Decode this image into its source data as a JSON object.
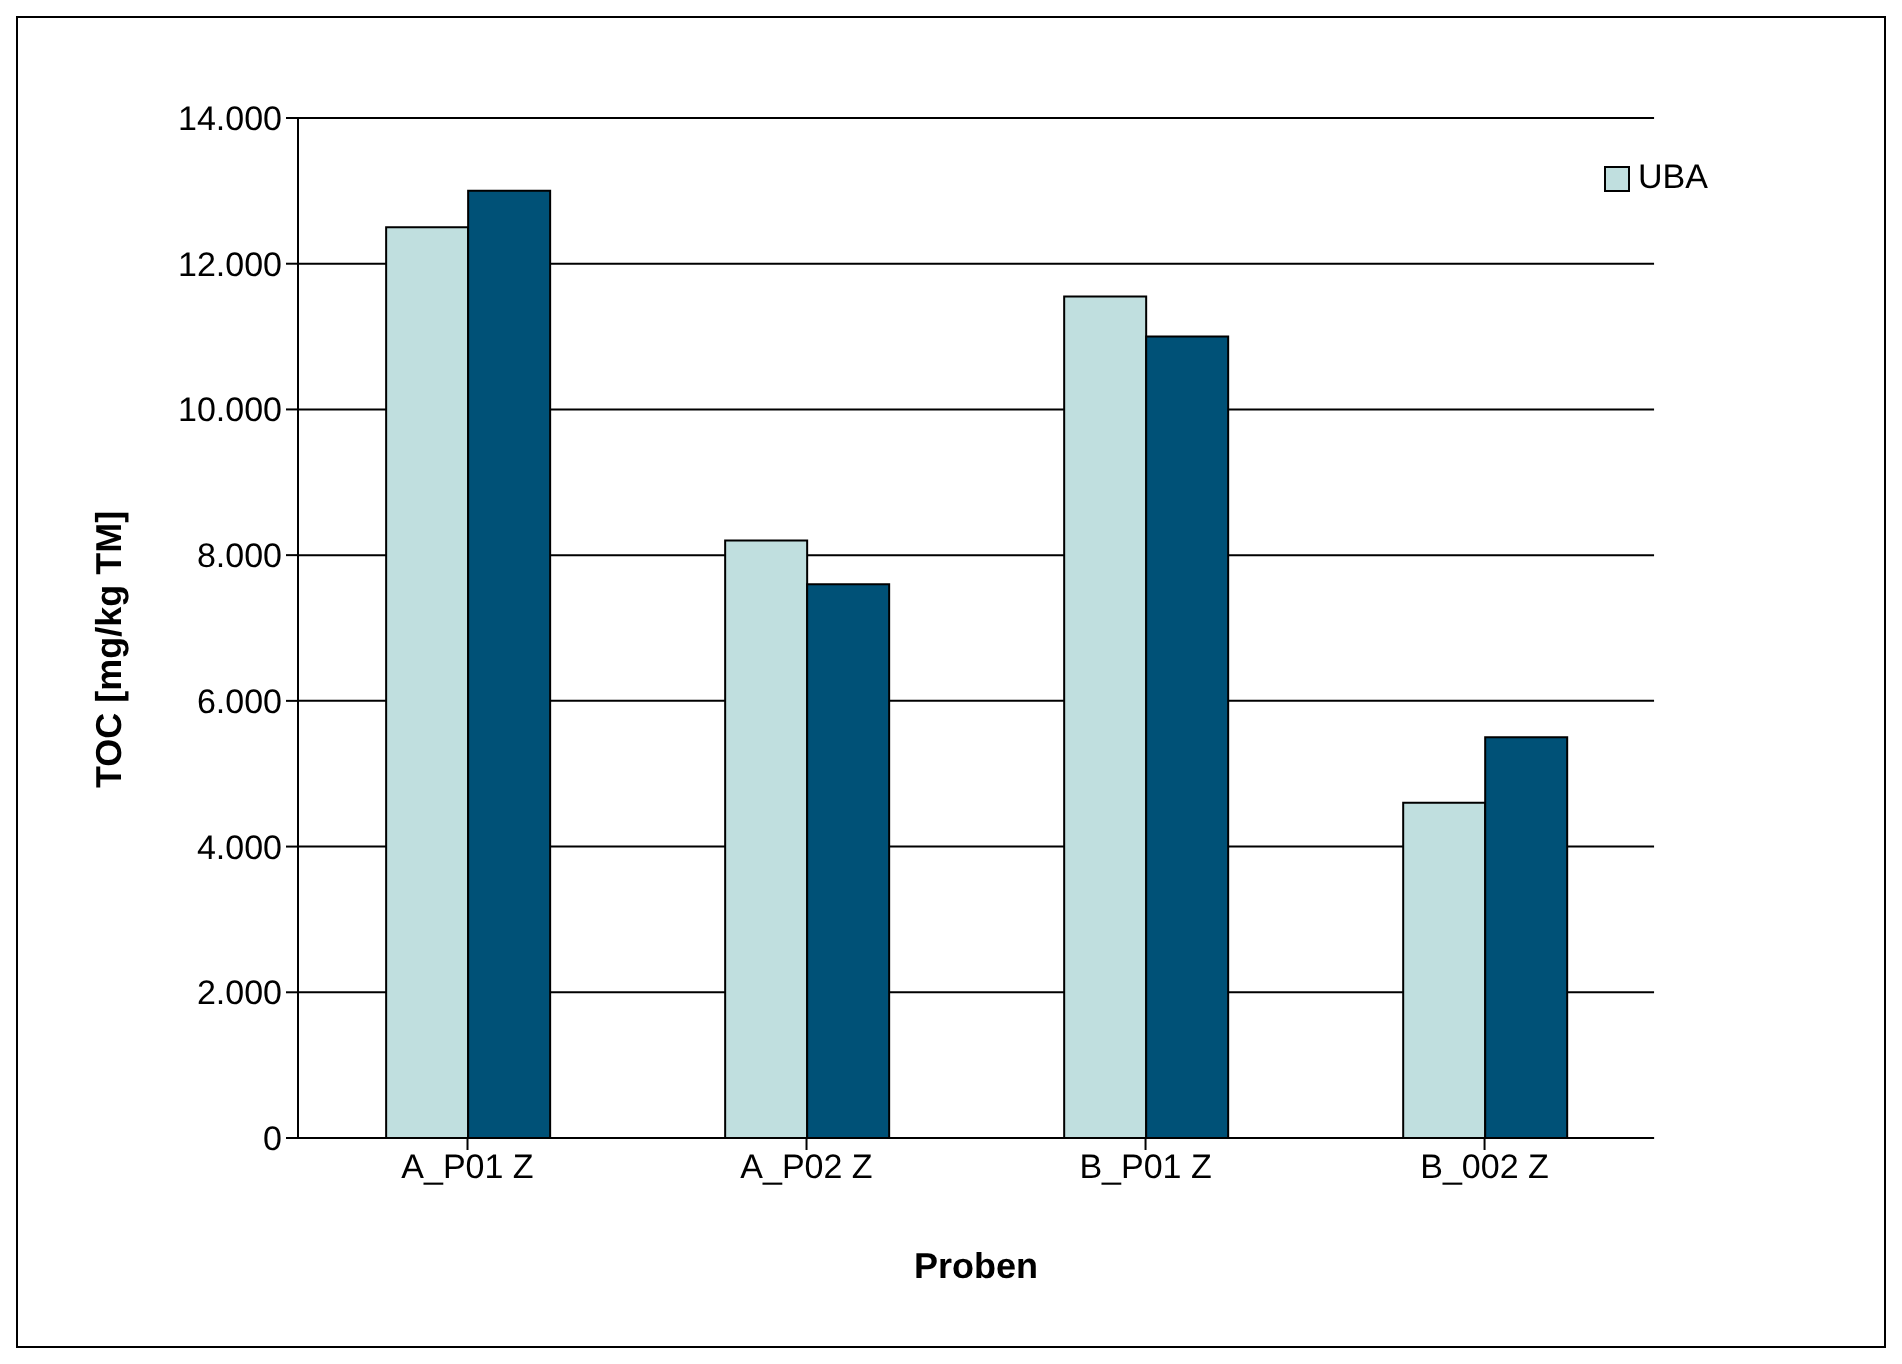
{
  "chart_data": {
    "type": "bar",
    "xlabel": "Proben",
    "ylabel": "TOC [mg/kg TM]",
    "categories": [
      "A_P01 Z",
      "A_P02 Z",
      "B_P01 Z",
      "B_002 Z"
    ],
    "series": [
      {
        "name": "UBA",
        "color": "#c0dfdf",
        "values": [
          12500,
          8200,
          11550,
          4600
        ]
      },
      {
        "color": "#005177",
        "values": [
          13000,
          7600,
          11000,
          5500
        ]
      }
    ],
    "ylim": [
      0,
      14000
    ],
    "yticks": [
      {
        "value": 0,
        "label": "0"
      },
      {
        "value": 2000,
        "label": "2.000"
      },
      {
        "value": 4000,
        "label": "4.000"
      },
      {
        "value": 6000,
        "label": "6.000"
      },
      {
        "value": 8000,
        "label": "8.000"
      },
      {
        "value": 10000,
        "label": "10.000"
      },
      {
        "value": 12000,
        "label": "12.000"
      },
      {
        "value": 14000,
        "label": "14.000"
      }
    ],
    "grid": "y",
    "legend": "top right"
  }
}
